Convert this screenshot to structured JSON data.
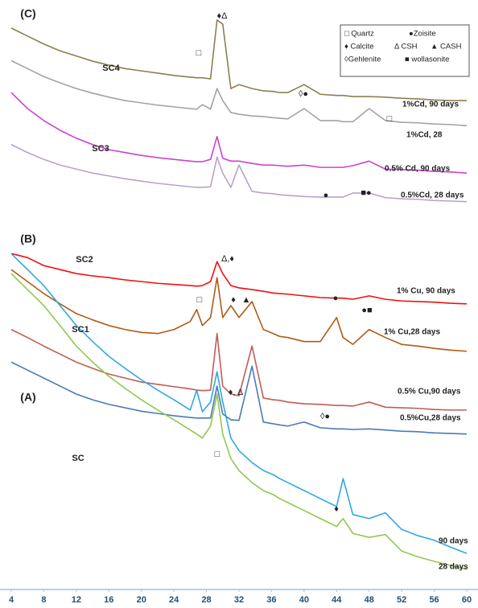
{
  "chart_data": {
    "type": "line",
    "xlim": [
      4,
      60
    ],
    "xticks": [
      4,
      8,
      12,
      16,
      20,
      24,
      28,
      32,
      36,
      40,
      44,
      48,
      52,
      56,
      60
    ],
    "ylim": [
      0,
      100
    ],
    "x": [
      4,
      6,
      8,
      10,
      12,
      14,
      16,
      18,
      20,
      22,
      24,
      26,
      26.8,
      27.5,
      28.5,
      29.3,
      30,
      31,
      32,
      33.6,
      35,
      36.2,
      37,
      38,
      40,
      42,
      44,
      44.8,
      46,
      48,
      50,
      52,
      54,
      56,
      58,
      60
    ],
    "series": [
      {
        "name": "1%Cd, 90 days",
        "color": "#8b8050",
        "values": [
          97.2,
          95.8,
          94.4,
          93.2,
          92.3,
          91.4,
          90.7,
          90.1,
          89.7,
          89.3,
          88.9,
          88.6,
          88.5,
          88.5,
          88.3,
          98.6,
          97.9,
          86.6,
          87.3,
          86.6,
          86.2,
          86.1,
          85.9,
          85.9,
          87.3,
          85.6,
          85.4,
          85.4,
          85.2,
          85.2,
          85.1,
          84.9,
          84.8,
          84.6,
          84.5,
          84.5
        ]
      },
      {
        "name": "1%Cd,  28",
        "color": "#a3a3a3",
        "values": [
          91.5,
          90.1,
          88.7,
          87.6,
          86.6,
          85.8,
          85.1,
          84.5,
          84.1,
          83.7,
          83.4,
          83.1,
          83.0,
          83.8,
          83.0,
          86.6,
          84.5,
          82.4,
          82.1,
          81.8,
          81.7,
          81.5,
          81.4,
          81.3,
          83.1,
          81.0,
          81.0,
          80.8,
          80.8,
          83.1,
          81.0,
          80.7,
          80.6,
          80.4,
          80.3,
          80.1
        ]
      },
      {
        "name": "0.5% Cd, 90 days",
        "color": "#d040d0",
        "values": [
          85.9,
          83.1,
          81.0,
          79.3,
          77.9,
          76.8,
          75.9,
          75.4,
          74.9,
          74.5,
          74.2,
          73.9,
          73.8,
          73.8,
          74.2,
          78.2,
          74.4,
          73.9,
          73.9,
          73.5,
          73.2,
          73.2,
          73.1,
          73.0,
          73.2,
          72.8,
          72.8,
          72.8,
          73.1,
          73.9,
          72.5,
          72.4,
          72.3,
          72.1,
          72.0,
          71.8
        ]
      },
      {
        "name": "0.5%Cd, 28 days",
        "color": "#b8a2cc",
        "values": [
          76.8,
          75.4,
          74.2,
          73.2,
          72.5,
          71.8,
          71.3,
          70.8,
          70.4,
          70.0,
          69.7,
          69.4,
          69.3,
          69.3,
          69.4,
          74.6,
          71.8,
          69.3,
          73.2,
          68.6,
          68.3,
          68.2,
          68.0,
          67.9,
          67.7,
          67.6,
          67.6,
          67.6,
          68.3,
          68.3,
          67.5,
          67.3,
          67.2,
          67.0,
          66.9,
          66.8
        ]
      },
      {
        "name": "1% Cu, 90 days",
        "color": "#ee1111",
        "values": [
          57.7,
          57.0,
          55.6,
          54.9,
          54.2,
          53.8,
          53.5,
          53.1,
          52.8,
          52.5,
          52.3,
          52.1,
          52.0,
          52.1,
          52.8,
          56.3,
          54.2,
          52.1,
          51.7,
          51.4,
          51.1,
          50.8,
          50.7,
          50.6,
          50.3,
          50.0,
          49.9,
          49.9,
          49.7,
          50.3,
          49.7,
          49.4,
          49.3,
          49.2,
          49.0,
          48.9
        ]
      },
      {
        "name": "1% Cu,28  days",
        "color": "#b05a14",
        "values": [
          54.9,
          52.8,
          50.7,
          48.9,
          47.2,
          46.1,
          45.1,
          44.4,
          43.9,
          43.7,
          44.4,
          45.8,
          47.9,
          45.1,
          46.5,
          53.5,
          46.5,
          48.6,
          46.5,
          49.3,
          44.4,
          43.7,
          43.2,
          43.0,
          42.3,
          42.3,
          46.5,
          43.0,
          41.8,
          44.4,
          43.0,
          41.8,
          41.5,
          41.1,
          40.8,
          40.6
        ]
      },
      {
        "name": "0.5% Cu,90 days",
        "color": "#c25c58",
        "values": [
          44.4,
          43.0,
          41.5,
          40.1,
          38.7,
          37.6,
          36.6,
          35.9,
          35.2,
          34.8,
          34.4,
          34.0,
          33.8,
          33.7,
          33.8,
          43.7,
          34.5,
          33.1,
          32.8,
          41.5,
          32.4,
          32.1,
          32.0,
          31.7,
          31.4,
          31.3,
          31.1,
          31.1,
          31.0,
          31.7,
          30.8,
          30.7,
          30.6,
          30.4,
          30.3,
          30.3
        ]
      },
      {
        "name": "0.5%Cu,28 days",
        "color": "#4a7ab8",
        "values": [
          38.7,
          37.3,
          35.9,
          34.5,
          33.1,
          32.1,
          31.3,
          30.7,
          30.1,
          29.7,
          29.3,
          29.0,
          28.9,
          28.9,
          28.9,
          34.5,
          29.6,
          28.6,
          28.5,
          38.0,
          28.2,
          27.9,
          27.7,
          27.5,
          28.2,
          27.2,
          27.0,
          27.0,
          26.9,
          27.0,
          26.8,
          26.6,
          26.5,
          26.3,
          26.2,
          26.1
        ]
      },
      {
        "name": "90 days",
        "color": "#30a8e0",
        "values": [
          57.7,
          54.9,
          52.1,
          48.6,
          45.1,
          42.3,
          39.7,
          37.6,
          35.6,
          33.8,
          32.1,
          30.3,
          33.8,
          30.0,
          31.7,
          37.0,
          31.7,
          25.4,
          23.2,
          21.1,
          19.7,
          19.0,
          18.3,
          17.6,
          16.2,
          14.8,
          13.4,
          18.3,
          12.0,
          11.3,
          12.3,
          9.4,
          8.3,
          7.5,
          6.3,
          5.2
        ]
      },
      {
        "name": "28 days",
        "color": "#92c850",
        "values": [
          54.2,
          51.4,
          48.6,
          45.1,
          41.5,
          38.7,
          36.2,
          34.1,
          32.1,
          30.3,
          28.6,
          26.8,
          26.1,
          25.4,
          27.5,
          33.1,
          26.1,
          21.8,
          19.7,
          17.6,
          16.2,
          15.5,
          14.8,
          14.1,
          12.7,
          11.3,
          9.9,
          11.3,
          8.7,
          8.0,
          8.5,
          5.6,
          4.6,
          3.8,
          3.1,
          2.4
        ]
      }
    ],
    "symbol_key": [
      "□ Quartz",
      "●Zoisite",
      "♦ Calcite",
      "Δ CSH",
      "▲ CASH",
      "◊Gehlenite",
      "■ wollasonite"
    ],
    "annotations": [
      "(C)",
      "SC4",
      "SC3",
      "(B)",
      "SC2",
      "SC1",
      "(A)",
      "SC",
      "♦Δ",
      "□",
      "◊●",
      "□",
      "●",
      "■●",
      "Δ,♦",
      "□",
      "♦",
      "▲",
      "●",
      "●■",
      "◊●",
      "♦, Δ",
      "□",
      "♦"
    ]
  }
}
